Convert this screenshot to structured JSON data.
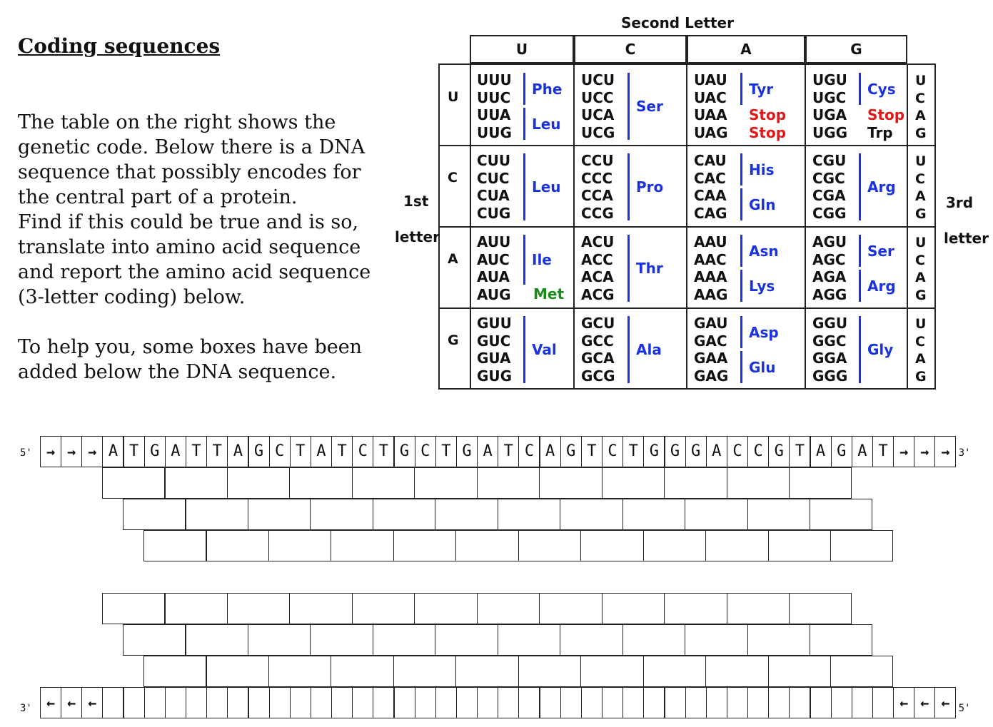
{
  "heading": "Coding sequences",
  "intro_paragraphs": [
    "The table on the right shows the genetic code. Below there is a DNA sequence that possibly encodes for the central part of a protein.\nFind if this could be true and is so, translate into amino acid sequence and report the amino acid sequence (3-letter coding) below.",
    "To help you, some boxes have been added below the DNA sequence."
  ],
  "genetic_code": {
    "title": "Second Letter",
    "second_letters": [
      "U",
      "C",
      "A",
      "G"
    ],
    "first_letters": [
      "U",
      "C",
      "A",
      "G"
    ],
    "third_letters": [
      "U",
      "C",
      "A",
      "G"
    ],
    "first_label": [
      "1st",
      "letter"
    ],
    "third_label": [
      "3rd",
      "letter"
    ],
    "colors": {
      "amino": "#1a32e0",
      "stop": "#e01818",
      "start": "#1a8a1a"
    },
    "blocks": [
      [
        {
          "codons": [
            "UUU",
            "UUC",
            "UUA",
            "UUG"
          ],
          "aa": [
            {
              "name": "Phe",
              "rows": [
                0,
                1
              ],
              "color": "amino"
            },
            {
              "name": "Leu",
              "rows": [
                2,
                3
              ],
              "color": "amino"
            }
          ]
        },
        {
          "codons": [
            "UCU",
            "UCC",
            "UCA",
            "UCG"
          ],
          "aa": [
            {
              "name": "Ser",
              "rows": [
                0,
                3
              ],
              "color": "amino"
            }
          ]
        },
        {
          "codons": [
            "UAU",
            "UAC",
            "UAA",
            "UAG"
          ],
          "aa": [
            {
              "name": "Tyr",
              "rows": [
                0,
                1
              ],
              "color": "amino"
            },
            {
              "name": "Stop",
              "rows": [
                2,
                2
              ],
              "color": "stop"
            },
            {
              "name": "Stop",
              "rows": [
                3,
                3
              ],
              "color": "stop"
            }
          ]
        },
        {
          "codons": [
            "UGU",
            "UGC",
            "UGA",
            "UGG"
          ],
          "aa": [
            {
              "name": "Cys",
              "rows": [
                0,
                1
              ],
              "color": "amino"
            },
            {
              "name": "Stop",
              "rows": [
                2,
                2
              ],
              "color": "stop"
            },
            {
              "name": "Trp",
              "rows": [
                3,
                3
              ],
              "color": "black"
            }
          ]
        }
      ],
      [
        {
          "codons": [
            "CUU",
            "CUC",
            "CUA",
            "CUG"
          ],
          "aa": [
            {
              "name": "Leu",
              "rows": [
                0,
                3
              ],
              "color": "amino"
            }
          ]
        },
        {
          "codons": [
            "CCU",
            "CCC",
            "CCA",
            "CCG"
          ],
          "aa": [
            {
              "name": "Pro",
              "rows": [
                0,
                3
              ],
              "color": "amino"
            }
          ]
        },
        {
          "codons": [
            "CAU",
            "CAC",
            "CAA",
            "CAG"
          ],
          "aa": [
            {
              "name": "His",
              "rows": [
                0,
                1
              ],
              "color": "amino"
            },
            {
              "name": "Gln",
              "rows": [
                2,
                3
              ],
              "color": "amino"
            }
          ]
        },
        {
          "codons": [
            "CGU",
            "CGC",
            "CGA",
            "CGG"
          ],
          "aa": [
            {
              "name": "Arg",
              "rows": [
                0,
                3
              ],
              "color": "amino"
            }
          ]
        }
      ],
      [
        {
          "codons": [
            "AUU",
            "AUC",
            "AUA",
            "AUG"
          ],
          "aa": [
            {
              "name": "Ile",
              "rows": [
                0,
                2
              ],
              "color": "amino"
            },
            {
              "name": "Met",
              "rows": [
                3,
                3
              ],
              "color": "start"
            }
          ]
        },
        {
          "codons": [
            "ACU",
            "ACC",
            "ACA",
            "ACG"
          ],
          "aa": [
            {
              "name": "Thr",
              "rows": [
                0,
                3
              ],
              "color": "amino"
            }
          ]
        },
        {
          "codons": [
            "AAU",
            "AAC",
            "AAA",
            "AAG"
          ],
          "aa": [
            {
              "name": "Asn",
              "rows": [
                0,
                1
              ],
              "color": "amino"
            },
            {
              "name": "Lys",
              "rows": [
                2,
                3
              ],
              "color": "amino"
            }
          ]
        },
        {
          "codons": [
            "AGU",
            "AGC",
            "AGA",
            "AGG"
          ],
          "aa": [
            {
              "name": "Ser",
              "rows": [
                0,
                1
              ],
              "color": "amino"
            },
            {
              "name": "Arg",
              "rows": [
                2,
                3
              ],
              "color": "amino"
            }
          ]
        }
      ],
      [
        {
          "codons": [
            "GUU",
            "GUC",
            "GUA",
            "GUG"
          ],
          "aa": [
            {
              "name": "Val",
              "rows": [
                0,
                3
              ],
              "color": "amino"
            }
          ]
        },
        {
          "codons": [
            "GCU",
            "GCC",
            "GCA",
            "GCG"
          ],
          "aa": [
            {
              "name": "Ala",
              "rows": [
                0,
                3
              ],
              "color": "amino"
            }
          ]
        },
        {
          "codons": [
            "GAU",
            "GAC",
            "GAA",
            "GAG"
          ],
          "aa": [
            {
              "name": "Asp",
              "rows": [
                0,
                1
              ],
              "color": "amino"
            },
            {
              "name": "Glu",
              "rows": [
                2,
                3
              ],
              "color": "amino"
            }
          ]
        },
        {
          "codons": [
            "GGU",
            "GGC",
            "GGA",
            "GGG"
          ],
          "aa": [
            {
              "name": "Gly",
              "rows": [
                0,
                3
              ],
              "color": "amino"
            }
          ]
        }
      ]
    ]
  },
  "dna": {
    "top_5_label": "5'",
    "top_3_label": "3'",
    "bottom_3_label": "3'",
    "bottom_5_label": "5'",
    "right_arrow": "→",
    "left_arrow": "←",
    "sequence": "ATGATTAGCTATCTGCTGATCAGTCTGGGACCGTAGAT",
    "flank_count": 3
  }
}
